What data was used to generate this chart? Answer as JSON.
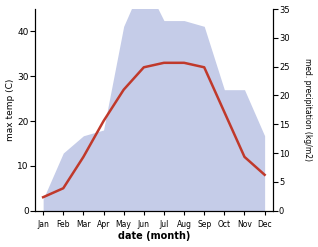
{
  "months": [
    "Jan",
    "Feb",
    "Mar",
    "Apr",
    "May",
    "Jun",
    "Jul",
    "Aug",
    "Sep",
    "Oct",
    "Nov",
    "Dec"
  ],
  "temperature": [
    3,
    5,
    12,
    20,
    27,
    32,
    33,
    33,
    32,
    22,
    12,
    8
  ],
  "precipitation": [
    2,
    10,
    13,
    14,
    32,
    40,
    33,
    33,
    32,
    21,
    21,
    13
  ],
  "temp_color": "#c0392b",
  "precip_fill_color": "#c5cce8",
  "temp_ylim": [
    0,
    45
  ],
  "precip_ylim": [
    0,
    35
  ],
  "temp_yticks": [
    0,
    10,
    20,
    30,
    40
  ],
  "precip_yticks": [
    0,
    5,
    10,
    15,
    20,
    25,
    30,
    35
  ],
  "xlabel": "date (month)",
  "ylabel_left": "max temp (C)",
  "ylabel_right": "med. precipitation (kg/m2)",
  "background_color": "#ffffff"
}
